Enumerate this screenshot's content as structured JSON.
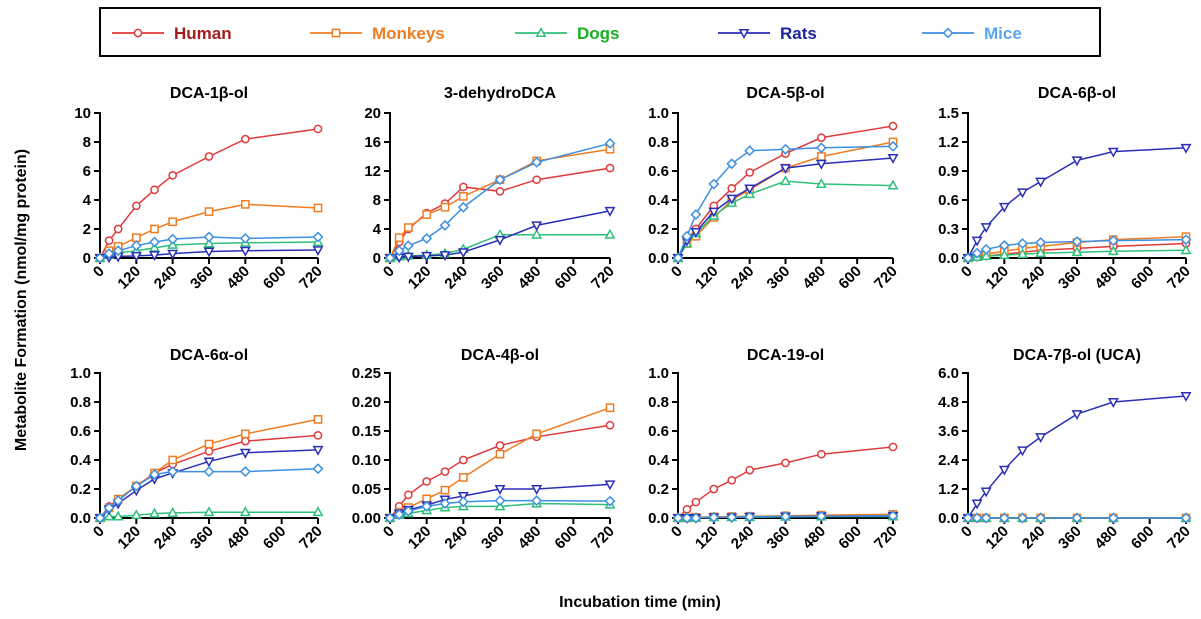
{
  "figure": {
    "shared_ylabel": "Metabolite Formation  (nmol/mg protein)",
    "shared_xlabel": "Incubation time (min)"
  },
  "legend": {
    "placement": "top",
    "items": [
      {
        "label": "Human",
        "color": "#e03a3a",
        "text_color": "#a51c1c",
        "marker": "circle"
      },
      {
        "label": "Monkeys",
        "color": "#f07c22",
        "text_color": "#f07c22",
        "marker": "square"
      },
      {
        "label": "Dogs",
        "color": "#2fc07a",
        "text_color": "#17b020",
        "marker": "triangle-up"
      },
      {
        "label": "Rats",
        "color": "#2a2fb8",
        "text_color": "#1c25a0",
        "marker": "triangle-down"
      },
      {
        "label": "Mice",
        "color": "#3d8fe0",
        "text_color": "#5aa7f0",
        "marker": "diamond"
      }
    ]
  },
  "chart_data": [
    {
      "type": "line",
      "title": "DCA-1β-ol",
      "x": [
        0,
        30,
        60,
        120,
        180,
        240,
        360,
        480,
        720
      ],
      "xticks": [
        "0",
        "120",
        "240",
        "360",
        "480",
        "600",
        "720"
      ],
      "xlim": [
        0,
        720
      ],
      "ylim": [
        0,
        10
      ],
      "yticks": [
        "0",
        "2",
        "4",
        "6",
        "8",
        "10"
      ],
      "series": [
        {
          "name": "Human",
          "values": [
            0,
            1.2,
            2.0,
            3.6,
            4.7,
            5.7,
            7.0,
            8.2,
            8.9
          ]
        },
        {
          "name": "Monkeys",
          "values": [
            0,
            0.5,
            0.8,
            1.4,
            2.0,
            2.5,
            3.2,
            3.7,
            3.45
          ]
        },
        {
          "name": "Dogs",
          "values": [
            0,
            0.2,
            0.35,
            0.5,
            0.7,
            0.9,
            1.0,
            1.05,
            1.1
          ]
        },
        {
          "name": "Rats",
          "values": [
            0,
            0.05,
            0.1,
            0.15,
            0.2,
            0.3,
            0.45,
            0.5,
            0.55
          ]
        },
        {
          "name": "Mice",
          "values": [
            0,
            0.3,
            0.5,
            0.85,
            1.1,
            1.3,
            1.45,
            1.35,
            1.45
          ]
        }
      ]
    },
    {
      "type": "line",
      "title": "3-dehydroDCA",
      "x": [
        0,
        30,
        60,
        120,
        180,
        240,
        360,
        480,
        720
      ],
      "xticks": [
        "0",
        "120",
        "240",
        "360",
        "480",
        "600",
        "720"
      ],
      "xlim": [
        0,
        720
      ],
      "ylim": [
        0,
        20
      ],
      "yticks": [
        "0",
        "4",
        "8",
        "12",
        "16",
        "20"
      ],
      "series": [
        {
          "name": "Human",
          "values": [
            0,
            2.2,
            4.0,
            6.2,
            7.5,
            9.8,
            9.2,
            10.8,
            12.4
          ]
        },
        {
          "name": "Monkeys",
          "values": [
            0,
            2.8,
            4.2,
            6.0,
            7.0,
            8.5,
            10.8,
            13.4,
            15.0
          ]
        },
        {
          "name": "Dogs",
          "values": [
            0,
            0.2,
            0.3,
            0.4,
            0.6,
            1.2,
            3.2,
            3.2,
            3.2
          ]
        },
        {
          "name": "Rats",
          "values": [
            0,
            0.1,
            0.2,
            0.3,
            0.4,
            0.8,
            2.5,
            4.5,
            6.5
          ]
        },
        {
          "name": "Mice",
          "values": [
            0,
            1.0,
            1.7,
            2.7,
            4.5,
            7.0,
            10.8,
            13.2,
            15.8
          ]
        }
      ]
    },
    {
      "type": "line",
      "title": "DCA-5β-ol",
      "x": [
        0,
        30,
        60,
        120,
        180,
        240,
        360,
        480,
        720
      ],
      "xticks": [
        "0",
        "120",
        "240",
        "360",
        "480",
        "600",
        "720"
      ],
      "xlim": [
        0,
        720
      ],
      "ylim": [
        0,
        1.0
      ],
      "yticks": [
        "0.0",
        "0.2",
        "0.4",
        "0.6",
        "0.8",
        "1.0"
      ],
      "series": [
        {
          "name": "Human",
          "values": [
            0,
            0.13,
            0.2,
            0.36,
            0.48,
            0.59,
            0.72,
            0.83,
            0.91
          ]
        },
        {
          "name": "Monkeys",
          "values": [
            0,
            0.1,
            0.15,
            0.28,
            0.4,
            0.47,
            0.62,
            0.7,
            0.8
          ]
        },
        {
          "name": "Dogs",
          "values": [
            0,
            0.1,
            0.17,
            0.29,
            0.38,
            0.44,
            0.53,
            0.51,
            0.5
          ]
        },
        {
          "name": "Rats",
          "values": [
            0,
            0.12,
            0.18,
            0.32,
            0.41,
            0.48,
            0.62,
            0.65,
            0.69
          ]
        },
        {
          "name": "Mice",
          "values": [
            0,
            0.15,
            0.3,
            0.51,
            0.65,
            0.74,
            0.75,
            0.76,
            0.77
          ]
        }
      ]
    },
    {
      "type": "line",
      "title": "DCA-6β-ol",
      "x": [
        0,
        30,
        60,
        120,
        180,
        240,
        360,
        480,
        720
      ],
      "xticks": [
        "0",
        "120",
        "240",
        "360",
        "480",
        "600",
        "720"
      ],
      "xlim": [
        0,
        720
      ],
      "ylim": [
        0,
        1.5
      ],
      "yticks": [
        "0.0",
        "0.3",
        "0.6",
        "0.9",
        "1.2",
        "1.5"
      ],
      "series": [
        {
          "name": "Human",
          "values": [
            0,
            0.01,
            0.02,
            0.04,
            0.06,
            0.08,
            0.1,
            0.12,
            0.15
          ]
        },
        {
          "name": "Monkeys",
          "values": [
            0,
            0.02,
            0.04,
            0.07,
            0.1,
            0.12,
            0.16,
            0.19,
            0.22
          ]
        },
        {
          "name": "Dogs",
          "values": [
            0,
            0.01,
            0.02,
            0.03,
            0.04,
            0.05,
            0.06,
            0.07,
            0.08
          ]
        },
        {
          "name": "Rats",
          "values": [
            0,
            0.18,
            0.32,
            0.53,
            0.68,
            0.79,
            1.01,
            1.1,
            1.14
          ]
        },
        {
          "name": "Mice",
          "values": [
            0,
            0.05,
            0.09,
            0.13,
            0.15,
            0.16,
            0.17,
            0.18,
            0.19
          ]
        }
      ]
    },
    {
      "type": "line",
      "title": "DCA-6α-ol",
      "x": [
        0,
        30,
        60,
        120,
        180,
        240,
        360,
        480,
        720
      ],
      "xticks": [
        "0",
        "120",
        "240",
        "360",
        "480",
        "600",
        "720"
      ],
      "xlim": [
        0,
        720
      ],
      "ylim": [
        0,
        1.0
      ],
      "yticks": [
        "0.0",
        "0.2",
        "0.4",
        "0.6",
        "0.8",
        "1.0"
      ],
      "series": [
        {
          "name": "Human",
          "values": [
            0,
            0.08,
            0.13,
            0.22,
            0.31,
            0.37,
            0.46,
            0.53,
            0.57
          ]
        },
        {
          "name": "Monkeys",
          "values": [
            0,
            0.07,
            0.13,
            0.22,
            0.31,
            0.4,
            0.51,
            0.58,
            0.68
          ]
        },
        {
          "name": "Dogs",
          "values": [
            0,
            0.01,
            0.01,
            0.02,
            0.03,
            0.035,
            0.04,
            0.04,
            0.04
          ]
        },
        {
          "name": "Rats",
          "values": [
            0,
            0.06,
            0.1,
            0.19,
            0.27,
            0.31,
            0.39,
            0.45,
            0.47
          ]
        },
        {
          "name": "Mice",
          "values": [
            0,
            0.07,
            0.12,
            0.22,
            0.3,
            0.32,
            0.32,
            0.32,
            0.34
          ]
        }
      ]
    },
    {
      "type": "line",
      "title": "DCA-4β-ol",
      "x": [
        0,
        30,
        60,
        120,
        180,
        240,
        360,
        480,
        720
      ],
      "xticks": [
        "0",
        "120",
        "240",
        "360",
        "480",
        "600",
        "720"
      ],
      "xlim": [
        0,
        720
      ],
      "ylim": [
        0,
        0.25
      ],
      "yticks": [
        "0.00",
        "0.05",
        "0.10",
        "0.15",
        "0.20",
        "0.25"
      ],
      "series": [
        {
          "name": "Human",
          "values": [
            0,
            0.02,
            0.04,
            0.063,
            0.08,
            0.1,
            0.125,
            0.14,
            0.16
          ]
        },
        {
          "name": "Monkeys",
          "values": [
            0,
            0.01,
            0.018,
            0.033,
            0.048,
            0.07,
            0.11,
            0.145,
            0.19
          ]
        },
        {
          "name": "Dogs",
          "values": [
            0,
            0.005,
            0.008,
            0.013,
            0.018,
            0.02,
            0.02,
            0.025,
            0.023
          ]
        },
        {
          "name": "Rats",
          "values": [
            0,
            0.008,
            0.014,
            0.022,
            0.032,
            0.038,
            0.05,
            0.05,
            0.058
          ]
        },
        {
          "name": "Mice",
          "values": [
            0,
            0.006,
            0.012,
            0.02,
            0.025,
            0.028,
            0.03,
            0.03,
            0.029
          ]
        }
      ]
    },
    {
      "type": "line",
      "title": "DCA-19-ol",
      "x": [
        0,
        30,
        60,
        120,
        180,
        240,
        360,
        480,
        720
      ],
      "xticks": [
        "0",
        "120",
        "240",
        "360",
        "480",
        "600",
        "720"
      ],
      "xlim": [
        0,
        720
      ],
      "ylim": [
        0,
        1.0
      ],
      "yticks": [
        "0.0",
        "0.2",
        "0.4",
        "0.6",
        "0.8",
        "1.0"
      ],
      "series": [
        {
          "name": "Human",
          "values": [
            0,
            0.06,
            0.11,
            0.2,
            0.26,
            0.33,
            0.38,
            0.44,
            0.49
          ]
        },
        {
          "name": "Monkeys",
          "values": [
            0,
            0,
            0.005,
            0.008,
            0.01,
            0.012,
            0.015,
            0.02,
            0.025
          ]
        },
        {
          "name": "Dogs",
          "values": [
            0,
            0,
            0,
            0.005,
            0.005,
            0.005,
            0.008,
            0.01,
            0.01
          ]
        },
        {
          "name": "Rats",
          "values": [
            0,
            0,
            0,
            0.005,
            0.005,
            0.008,
            0.01,
            0.012,
            0.015
          ]
        },
        {
          "name": "Mice",
          "values": [
            0,
            0,
            0,
            0.005,
            0.005,
            0.008,
            0.01,
            0.012,
            0.015
          ]
        }
      ]
    },
    {
      "type": "line",
      "title": "DCA-7β-ol (UCA)",
      "x": [
        0,
        30,
        60,
        120,
        180,
        240,
        360,
        480,
        720
      ],
      "xticks": [
        "0",
        "120",
        "240",
        "360",
        "480",
        "600",
        "720"
      ],
      "xlim": [
        0,
        720
      ],
      "ylim": [
        0,
        6.0
      ],
      "yticks": [
        "0.0",
        "1.2",
        "2.4",
        "3.6",
        "4.8",
        "6.0"
      ],
      "series": [
        {
          "name": "Human",
          "values": [
            0,
            0,
            0,
            0,
            0,
            0,
            0,
            0,
            0
          ]
        },
        {
          "name": "Monkeys",
          "values": [
            0,
            0,
            0,
            0,
            0,
            0,
            0,
            0,
            0
          ]
        },
        {
          "name": "Dogs",
          "values": [
            0,
            0,
            0,
            0,
            0,
            0,
            0,
            0,
            0
          ]
        },
        {
          "name": "Rats",
          "values": [
            0,
            0.6,
            1.1,
            2.0,
            2.8,
            3.35,
            4.3,
            4.8,
            5.05
          ]
        },
        {
          "name": "Mice",
          "values": [
            0,
            0,
            0,
            0,
            0,
            0,
            0,
            0,
            0
          ]
        }
      ]
    }
  ]
}
